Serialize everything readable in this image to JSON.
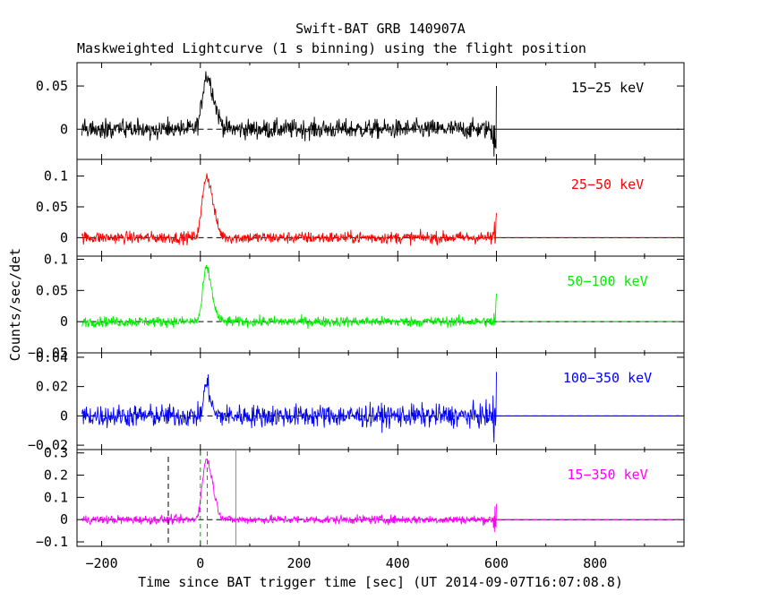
{
  "colors": {
    "black": "#000000",
    "red": "#ff0000",
    "green": "#00ee00",
    "blue": "#0000ff",
    "magenta": "#ff00ff",
    "orange": "#e08000",
    "dark_green": "#00aa00"
  },
  "chart_data": {
    "type": "line",
    "title": "Swift-BAT GRB 140907A",
    "subtitle": "Maskweighted Lightcurve (1 s binning) using the flight position",
    "xlabel": "Time since BAT trigger time [sec] (UT 2014-09-07T16:07:08.8)",
    "ylabel": "Counts/sec/det",
    "xlim": [
      -250,
      980
    ],
    "x_ticks": [
      -200,
      0,
      200,
      400,
      600,
      800
    ],
    "x_tick_labels": [
      "−200",
      "0",
      "200",
      "400",
      "600",
      "800"
    ],
    "data_range": [
      -240,
      600
    ],
    "markers": {
      "dashed_black_x": -65,
      "dashed_green_x": [
        0,
        14
      ],
      "orange_x": 72
    },
    "series": [
      {
        "name": "15−25 keV",
        "color": "#000000",
        "ylim": [
          -0.035,
          0.077
        ],
        "y_ticks": [
          0,
          0.05
        ],
        "y_tick_labels": [
          "0",
          "0.05"
        ],
        "noise": 0.008,
        "peak": 0.062,
        "peak_center": 12,
        "rise": 8,
        "decay": 15,
        "end_spike": 0.05
      },
      {
        "name": "25−50 keV",
        "color": "#ff0000",
        "ylim": [
          -0.03,
          0.127
        ],
        "y_ticks": [
          0,
          0.05,
          0.1
        ],
        "y_tick_labels": [
          "0",
          "0.05",
          "0.1"
        ],
        "noise": 0.007,
        "peak": 0.1,
        "peak_center": 12,
        "rise": 8,
        "decay": 13,
        "end_spike": 0.04
      },
      {
        "name": "50−100 keV",
        "color": "#00ee00",
        "ylim": [
          -0.05,
          0.105
        ],
        "y_ticks": [
          -0.05,
          0,
          0.05,
          0.1
        ],
        "y_tick_labels": [
          "−0.05",
          "0",
          "0.05",
          "0.1"
        ],
        "noise": 0.006,
        "peak": 0.085,
        "peak_center": 12,
        "rise": 7,
        "decay": 11,
        "end_spike": 0.045
      },
      {
        "name": "100−350 keV",
        "color": "#0000ff",
        "ylim": [
          -0.023,
          0.043
        ],
        "y_ticks": [
          -0.02,
          0,
          0.02,
          0.04
        ],
        "y_tick_labels": [
          "−0.02",
          "0",
          "0.02",
          "0.04"
        ],
        "noise": 0.0055,
        "peak": 0.022,
        "peak_center": 12,
        "rise": 5,
        "decay": 8,
        "end_spike": 0.03
      },
      {
        "name": "15−350 keV",
        "color": "#ff00ff",
        "ylim": [
          -0.12,
          0.315
        ],
        "y_ticks": [
          -0.1,
          0,
          0.1,
          0.2,
          0.3
        ],
        "y_tick_labels": [
          "−0.1",
          "0",
          "0.1",
          "0.2",
          "0.3"
        ],
        "noise": 0.014,
        "peak": 0.27,
        "peak_center": 12,
        "rise": 8,
        "decay": 13,
        "end_spike": 0.07
      }
    ]
  }
}
